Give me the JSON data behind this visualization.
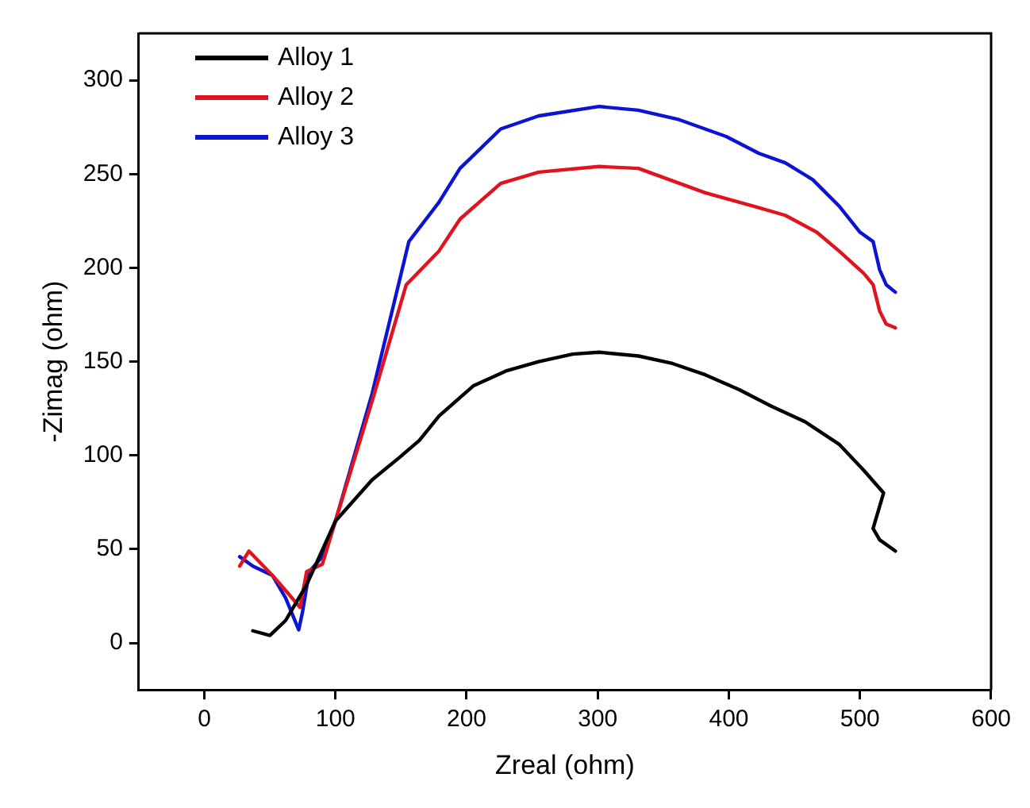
{
  "chart_data": {
    "type": "line",
    "xlabel": "Zreal (ohm)",
    "ylabel": "-Zimag (ohm)",
    "xlim": [
      -50,
      600
    ],
    "xticks": [
      0,
      100,
      200,
      300,
      400,
      500,
      600
    ],
    "ylim": [
      -25,
      325
    ],
    "yticks": [
      0,
      50,
      100,
      150,
      200,
      250,
      300
    ],
    "grid": false,
    "legend": "top left",
    "marker": "none",
    "line_style": "solid",
    "series": [
      {
        "name": "Alloy 1",
        "color": "#000000",
        "x": [
          37,
          50,
          62,
          78,
          100,
          128,
          149,
          164,
          179,
          205,
          230,
          255,
          281,
          301,
          331,
          357,
          382,
          408,
          433,
          458,
          484,
          503,
          518,
          510,
          515,
          527
        ],
        "values": [
          6.5,
          4,
          12,
          31,
          65,
          87,
          99,
          108,
          121,
          137,
          145,
          150,
          154,
          155,
          153,
          149,
          143,
          135,
          126,
          118,
          106,
          92,
          80,
          61,
          55,
          49
        ]
      },
      {
        "name": "Alloy 2",
        "color": "#e0141e",
        "x": [
          27,
          34,
          52,
          62,
          73,
          78,
          90,
          100,
          128,
          154,
          179,
          195,
          226,
          255,
          301,
          331,
          382,
          418,
          443,
          467,
          484,
          503,
          510,
          515,
          520,
          527
        ],
        "values": [
          41,
          49,
          36,
          28,
          19,
          38,
          42,
          65,
          129,
          191,
          209,
          226,
          245,
          251,
          254,
          253,
          240,
          233,
          228,
          219,
          209,
          197,
          191,
          177,
          170,
          168
        ]
      },
      {
        "name": "Alloy 3",
        "color": "#0a14d2",
        "x": [
          27,
          37,
          52,
          62,
          72,
          75,
          80,
          90,
          100,
          128,
          156,
          179,
          195,
          226,
          255,
          301,
          331,
          362,
          398,
          423,
          443,
          464,
          484,
          500,
          510,
          515,
          520,
          527
        ],
        "values": [
          46,
          41,
          36,
          24,
          7,
          17,
          38,
          46,
          65,
          133,
          214,
          235,
          253,
          274,
          281,
          286,
          284,
          279,
          270,
          261,
          256,
          247,
          233,
          219,
          214,
          199,
          191,
          187
        ]
      }
    ]
  }
}
